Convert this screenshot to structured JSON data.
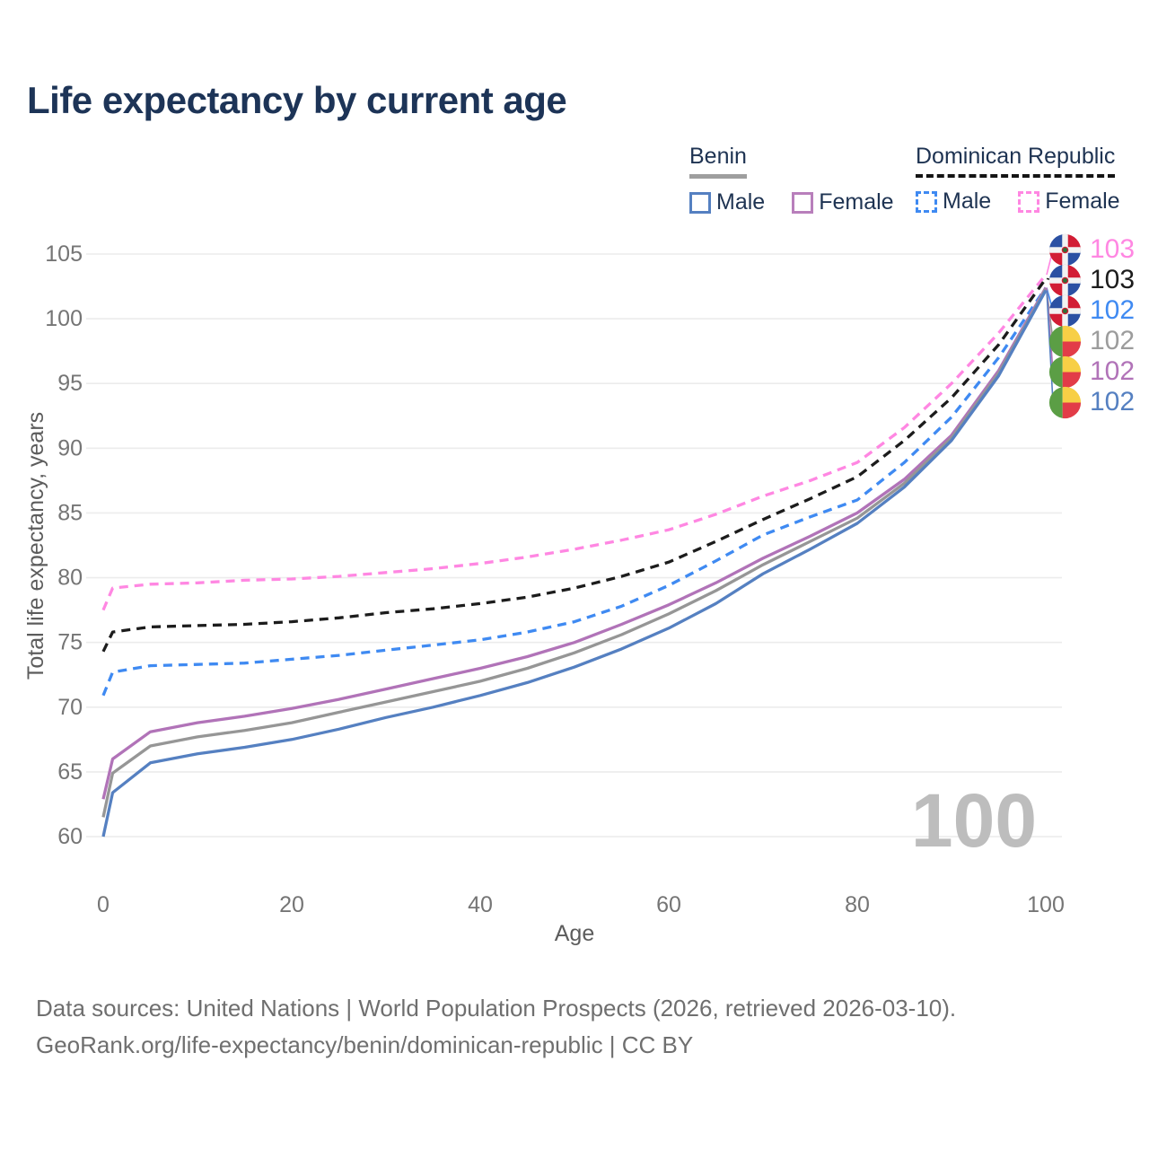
{
  "title": "Life expectancy by current age",
  "legend": {
    "groups": [
      {
        "name": "Benin",
        "line_style": "solid",
        "underline_color": "#9e9e9e",
        "items": [
          {
            "label": "Male",
            "color": "#5580c1",
            "dashed": false
          },
          {
            "label": "Female",
            "color": "#b87fbb",
            "dashed": false
          }
        ]
      },
      {
        "name": "Dominican Republic",
        "line_style": "dashed",
        "underline_color": "#141414",
        "items": [
          {
            "label": "Male",
            "color": "#3f8af2",
            "dashed": true
          },
          {
            "label": "Female",
            "color": "#ff87e2",
            "dashed": true
          }
        ]
      }
    ]
  },
  "chart_data": {
    "type": "line",
    "title": "Life expectancy by current age",
    "xlabel": "Age",
    "ylabel": "Total life expectancy, years",
    "xlim": [
      0,
      100
    ],
    "ylim": [
      60,
      105
    ],
    "xticks": [
      0,
      20,
      40,
      60,
      80,
      100
    ],
    "yticks": [
      60,
      65,
      70,
      75,
      80,
      85,
      90,
      95,
      100,
      105
    ],
    "grid": "horizontal",
    "watermark": "100",
    "x": [
      0,
      1,
      5,
      10,
      15,
      20,
      25,
      30,
      35,
      40,
      45,
      50,
      55,
      60,
      65,
      70,
      75,
      80,
      85,
      90,
      95,
      100
    ],
    "series": [
      {
        "id": "dr_female",
        "name": "Dominican Republic Female",
        "color": "#ff87e2",
        "dashed": true,
        "values": [
          77.5,
          79.2,
          79.5,
          79.6,
          79.8,
          79.9,
          80.1,
          80.4,
          80.7,
          81.1,
          81.6,
          82.2,
          82.9,
          83.7,
          84.9,
          86.3,
          87.5,
          88.9,
          91.6,
          95.0,
          98.9,
          103.4
        ]
      },
      {
        "id": "dr_total",
        "name": "Dominican Republic Total",
        "color": "#1c1c1c",
        "dashed": true,
        "values": [
          74.3,
          75.8,
          76.2,
          76.3,
          76.4,
          76.6,
          76.9,
          77.3,
          77.6,
          78.0,
          78.5,
          79.2,
          80.1,
          81.2,
          82.8,
          84.5,
          86.1,
          87.8,
          90.6,
          93.9,
          98.0,
          103.1
        ]
      },
      {
        "id": "dr_male",
        "name": "Dominican Republic Male",
        "color": "#3f8af2",
        "dashed": true,
        "values": [
          70.9,
          72.7,
          73.2,
          73.3,
          73.4,
          73.7,
          74.0,
          74.4,
          74.8,
          75.2,
          75.8,
          76.6,
          77.8,
          79.4,
          81.3,
          83.3,
          84.7,
          86.0,
          88.9,
          92.4,
          97.0,
          102.4
        ]
      },
      {
        "id": "benin_female",
        "name": "Benin Female",
        "color": "#b173b8",
        "dashed": false,
        "values": [
          62.9,
          66.0,
          68.1,
          68.8,
          69.3,
          69.9,
          70.6,
          71.4,
          72.2,
          73.0,
          73.9,
          75.0,
          76.4,
          77.9,
          79.6,
          81.5,
          83.2,
          85.0,
          87.6,
          91.0,
          96.0,
          102.4
        ]
      },
      {
        "id": "benin_total",
        "name": "Benin Total",
        "color": "#969696",
        "dashed": false,
        "values": [
          61.5,
          64.9,
          67.0,
          67.7,
          68.2,
          68.8,
          69.6,
          70.4,
          71.2,
          72.0,
          73.0,
          74.2,
          75.6,
          77.2,
          79.0,
          81.0,
          82.8,
          84.6,
          87.3,
          90.8,
          95.8,
          102.3
        ]
      },
      {
        "id": "benin_male",
        "name": "Benin Male",
        "color": "#5580c1",
        "dashed": false,
        "values": [
          60.0,
          63.4,
          65.7,
          66.4,
          66.9,
          67.5,
          68.3,
          69.2,
          70.0,
          70.9,
          71.9,
          73.1,
          74.5,
          76.1,
          78.0,
          80.3,
          82.2,
          84.2,
          87.0,
          90.6,
          95.6,
          102.2
        ]
      }
    ]
  },
  "end_labels": [
    {
      "value": "103",
      "color": "#ff87e2",
      "flag": "do",
      "series": "dr_female"
    },
    {
      "value": "103",
      "color": "#1c1c1c",
      "flag": "do",
      "series": "dr_total"
    },
    {
      "value": "102",
      "color": "#3f8af2",
      "flag": "do",
      "series": "dr_male"
    },
    {
      "value": "102",
      "color": "#9c9c9c",
      "flag": "bj",
      "series": "benin_total"
    },
    {
      "value": "102",
      "color": "#b173b8",
      "flag": "bj",
      "series": "benin_female"
    },
    {
      "value": "102",
      "color": "#5580c1",
      "flag": "bj",
      "series": "benin_male"
    }
  ],
  "footer": {
    "line1": "Data sources: United Nations | World Population Prospects (2026, retrieved 2026-03-10).",
    "line2": "GeoRank.org/life-expectancy/benin/dominican-republic | CC BY"
  }
}
